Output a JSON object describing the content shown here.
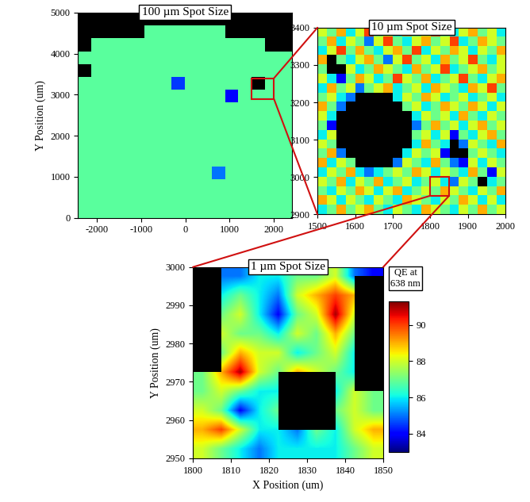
{
  "chart_data": [
    {
      "type": "heatmap",
      "title": "100 µm Spot Size",
      "y_label": "Y Position (um)",
      "xlim": [
        -2430,
        2410
      ],
      "xticks": [
        -2000,
        -1000,
        0,
        1000,
        2000
      ],
      "ylim": [
        0,
        5000
      ],
      "yticks": [
        0,
        1000,
        2000,
        3000,
        4000,
        5000
      ],
      "cells": [
        [
          null,
          null,
          null,
          null,
          null,
          null,
          null,
          null,
          null,
          null,
          null,
          null,
          null,
          null,
          null,
          null
        ],
        [
          null,
          null,
          null,
          null,
          null,
          86.8,
          86.8,
          86.8,
          86.8,
          86.8,
          86.8,
          null,
          null,
          null,
          null,
          null
        ],
        [
          null,
          86.8,
          86.8,
          86.8,
          86.8,
          86.8,
          86.8,
          86.8,
          86.8,
          86.8,
          86.8,
          86.8,
          86.8,
          86.8,
          null,
          null
        ],
        [
          86.8,
          86.8,
          86.8,
          86.8,
          86.8,
          86.8,
          86.8,
          86.8,
          86.8,
          86.8,
          86.8,
          86.8,
          86.8,
          86.8,
          86.8,
          86.8
        ],
        [
          null,
          86.8,
          86.8,
          86.8,
          86.8,
          86.8,
          86.8,
          86.8,
          86.8,
          86.8,
          86.8,
          86.8,
          86.8,
          86.8,
          86.8,
          86.8
        ],
        [
          86.8,
          86.8,
          86.8,
          86.8,
          86.8,
          86.8,
          86.8,
          84.5,
          86.8,
          86.8,
          86.8,
          86.8,
          86.8,
          null,
          86.8,
          86.8
        ],
        [
          86.8,
          86.8,
          86.8,
          86.8,
          86.8,
          86.8,
          86.8,
          86.8,
          86.8,
          86.8,
          86.8,
          84,
          86.8,
          86.8,
          86.8,
          86.8
        ],
        [
          86.8,
          86.8,
          86.8,
          86.8,
          86.8,
          86.8,
          86.8,
          86.8,
          86.8,
          86.8,
          86.8,
          86.8,
          86.8,
          86.8,
          86.8,
          86.8
        ],
        [
          86.8,
          86.8,
          86.8,
          86.8,
          86.8,
          86.8,
          86.8,
          86.8,
          86.8,
          86.8,
          86.8,
          86.8,
          86.8,
          86.8,
          86.8,
          86.8
        ],
        [
          86.8,
          86.8,
          86.8,
          86.8,
          86.8,
          86.8,
          86.8,
          86.8,
          86.8,
          86.8,
          86.8,
          86.8,
          86.8,
          86.8,
          86.8,
          86.8
        ],
        [
          86.8,
          86.8,
          86.8,
          86.8,
          86.8,
          86.8,
          86.8,
          86.8,
          86.8,
          86.8,
          86.8,
          86.8,
          86.8,
          86.8,
          86.8,
          86.8
        ],
        [
          86.8,
          86.8,
          86.8,
          86.8,
          86.8,
          86.8,
          86.8,
          86.8,
          86.8,
          86.8,
          86.8,
          86.8,
          86.8,
          86.8,
          86.8,
          86.8
        ],
        [
          86.8,
          86.8,
          86.8,
          86.8,
          86.8,
          86.8,
          86.8,
          86.8,
          86.8,
          86.8,
          85,
          86.8,
          86.8,
          86.8,
          86.8,
          86.8
        ],
        [
          86.8,
          86.8,
          86.8,
          86.8,
          86.8,
          86.8,
          86.8,
          86.8,
          86.8,
          86.8,
          86.8,
          86.8,
          86.8,
          86.8,
          86.8,
          86.8
        ],
        [
          86.8,
          86.8,
          86.8,
          86.8,
          86.8,
          86.8,
          86.8,
          86.8,
          86.8,
          86.8,
          86.8,
          86.8,
          86.8,
          86.8,
          86.8,
          86.8
        ],
        [
          86.8,
          86.8,
          86.8,
          86.8,
          86.8,
          86.8,
          86.8,
          86.8,
          86.8,
          86.8,
          86.8,
          86.8,
          86.8,
          86.8,
          86.8,
          86.8
        ]
      ]
    },
    {
      "type": "heatmap",
      "title": "10 µm Spot Size",
      "xlim": [
        1500,
        2000
      ],
      "xticks": [
        1500,
        1600,
        1700,
        1800,
        1900,
        2000
      ],
      "ylim": [
        2900,
        3400
      ],
      "yticks": [
        2900,
        3000,
        3100,
        3200,
        3300,
        3400
      ],
      "cells": [
        [
          88,
          87,
          89,
          86,
          88,
          90,
          87,
          88,
          86,
          89,
          87,
          88,
          90,
          87,
          86,
          88,
          89,
          87,
          88,
          86
        ],
        [
          87,
          89,
          86,
          88,
          87,
          85,
          88,
          90,
          87,
          86,
          88,
          89,
          87,
          88,
          90,
          86,
          87,
          89,
          88,
          87
        ],
        [
          86,
          88,
          90,
          87,
          89,
          87,
          86,
          88,
          89,
          87,
          90,
          86,
          88,
          87,
          89,
          88,
          86,
          88,
          87,
          89
        ],
        [
          89,
          null,
          87,
          86,
          88,
          89,
          87,
          85,
          88,
          90,
          87,
          88,
          86,
          89,
          87,
          88,
          90,
          87,
          86,
          88
        ],
        [
          87,
          null,
          null,
          88,
          86,
          87,
          89,
          88,
          87,
          86,
          89,
          87,
          88,
          90,
          86,
          87,
          88,
          89,
          87,
          88
        ],
        [
          88,
          86,
          84,
          87,
          89,
          88,
          86,
          87,
          90,
          88,
          87,
          89,
          86,
          87,
          88,
          90,
          87,
          86,
          88,
          89
        ],
        [
          86,
          89,
          87,
          88,
          85,
          87,
          88,
          89,
          86,
          87,
          88,
          86,
          89,
          88,
          87,
          86,
          89,
          88,
          90,
          87
        ],
        [
          87,
          88,
          86,
          85,
          null,
          null,
          null,
          null,
          86,
          88,
          87,
          89,
          88,
          86,
          87,
          88,
          86,
          87,
          88,
          86
        ],
        [
          89,
          87,
          85,
          null,
          null,
          null,
          null,
          null,
          null,
          87,
          88,
          86,
          87,
          89,
          88,
          87,
          89,
          88,
          86,
          88
        ],
        [
          88,
          86,
          null,
          null,
          null,
          null,
          null,
          null,
          null,
          null,
          86,
          88,
          87,
          88,
          86,
          89,
          87,
          86,
          88,
          87
        ],
        [
          87,
          84,
          null,
          null,
          null,
          null,
          null,
          null,
          null,
          null,
          85,
          87,
          89,
          87,
          88,
          86,
          88,
          89,
          87,
          88
        ],
        [
          86,
          88,
          null,
          null,
          null,
          null,
          null,
          null,
          null,
          null,
          87,
          88,
          86,
          88,
          84,
          87,
          86,
          88,
          89,
          87
        ],
        [
          88,
          87,
          null,
          null,
          null,
          null,
          null,
          null,
          null,
          null,
          86,
          89,
          87,
          86,
          null,
          85,
          88,
          87,
          86,
          89
        ],
        [
          87,
          89,
          85,
          null,
          null,
          null,
          null,
          null,
          null,
          86,
          88,
          87,
          88,
          84,
          null,
          null,
          87,
          88,
          87,
          86
        ],
        [
          89,
          86,
          88,
          87,
          null,
          null,
          null,
          null,
          85,
          88,
          87,
          86,
          89,
          87,
          85,
          84,
          88,
          86,
          88,
          87
        ],
        [
          86,
          88,
          87,
          89,
          86,
          85,
          86,
          87,
          88,
          87,
          89,
          88,
          86,
          88,
          87,
          86,
          89,
          87,
          84,
          88
        ],
        [
          88,
          87,
          89,
          86,
          88,
          87,
          89,
          86,
          87,
          88,
          86,
          87,
          88,
          86,
          85,
          88,
          87,
          null,
          86,
          87
        ],
        [
          87,
          86,
          88,
          87,
          89,
          88,
          86,
          88,
          89,
          86,
          87,
          88,
          87,
          89,
          88,
          87,
          86,
          88,
          87,
          89
        ],
        [
          89,
          88,
          86,
          88,
          87,
          86,
          88,
          87,
          86,
          89,
          88,
          87,
          86,
          88,
          87,
          89,
          88,
          86,
          88,
          86
        ],
        [
          86,
          87,
          89,
          87,
          88,
          89,
          87,
          86,
          88,
          87,
          86,
          89,
          88,
          87,
          86,
          88,
          87,
          89,
          87,
          88
        ]
      ]
    },
    {
      "type": "heatmap",
      "title": "1 µm Spot Size",
      "x_label": "X Position (um)",
      "y_label": "Y Position (um)",
      "xlim": [
        1800,
        1850
      ],
      "xticks": [
        1800,
        1810,
        1820,
        1830,
        1840,
        1850
      ],
      "ylim": [
        2950,
        3000
      ],
      "yticks": [
        2950,
        2960,
        2970,
        2980,
        2990,
        3000
      ],
      "cells": [
        [
          null,
          85,
          85,
          86,
          86,
          87,
          87,
          88,
          85,
          84
        ],
        [
          null,
          86,
          87,
          86,
          85,
          88,
          89,
          90,
          89,
          null
        ],
        [
          null,
          87,
          88,
          86,
          84,
          87,
          88,
          91,
          88,
          null
        ],
        [
          null,
          88,
          87,
          87,
          86,
          88,
          87,
          89,
          87,
          null
        ],
        [
          null,
          87,
          89,
          88,
          88,
          86,
          87,
          88,
          86,
          null
        ],
        [
          87,
          89,
          91,
          88,
          87,
          89,
          88,
          87,
          86,
          null
        ],
        [
          87,
          88,
          87,
          86,
          86,
          null,
          null,
          86,
          88,
          87
        ],
        [
          88,
          87,
          84,
          86,
          87,
          null,
          null,
          87,
          88,
          87
        ],
        [
          89,
          90,
          88,
          86,
          86,
          85,
          87,
          86,
          88,
          89
        ],
        [
          88,
          87,
          86,
          85,
          86,
          86,
          86,
          86,
          87,
          88
        ]
      ],
      "colorbar": {
        "label": "QE at\n638 nm",
        "range": [
          83,
          91.3
        ],
        "ticks": [
          84,
          86,
          88,
          90
        ]
      }
    }
  ]
}
